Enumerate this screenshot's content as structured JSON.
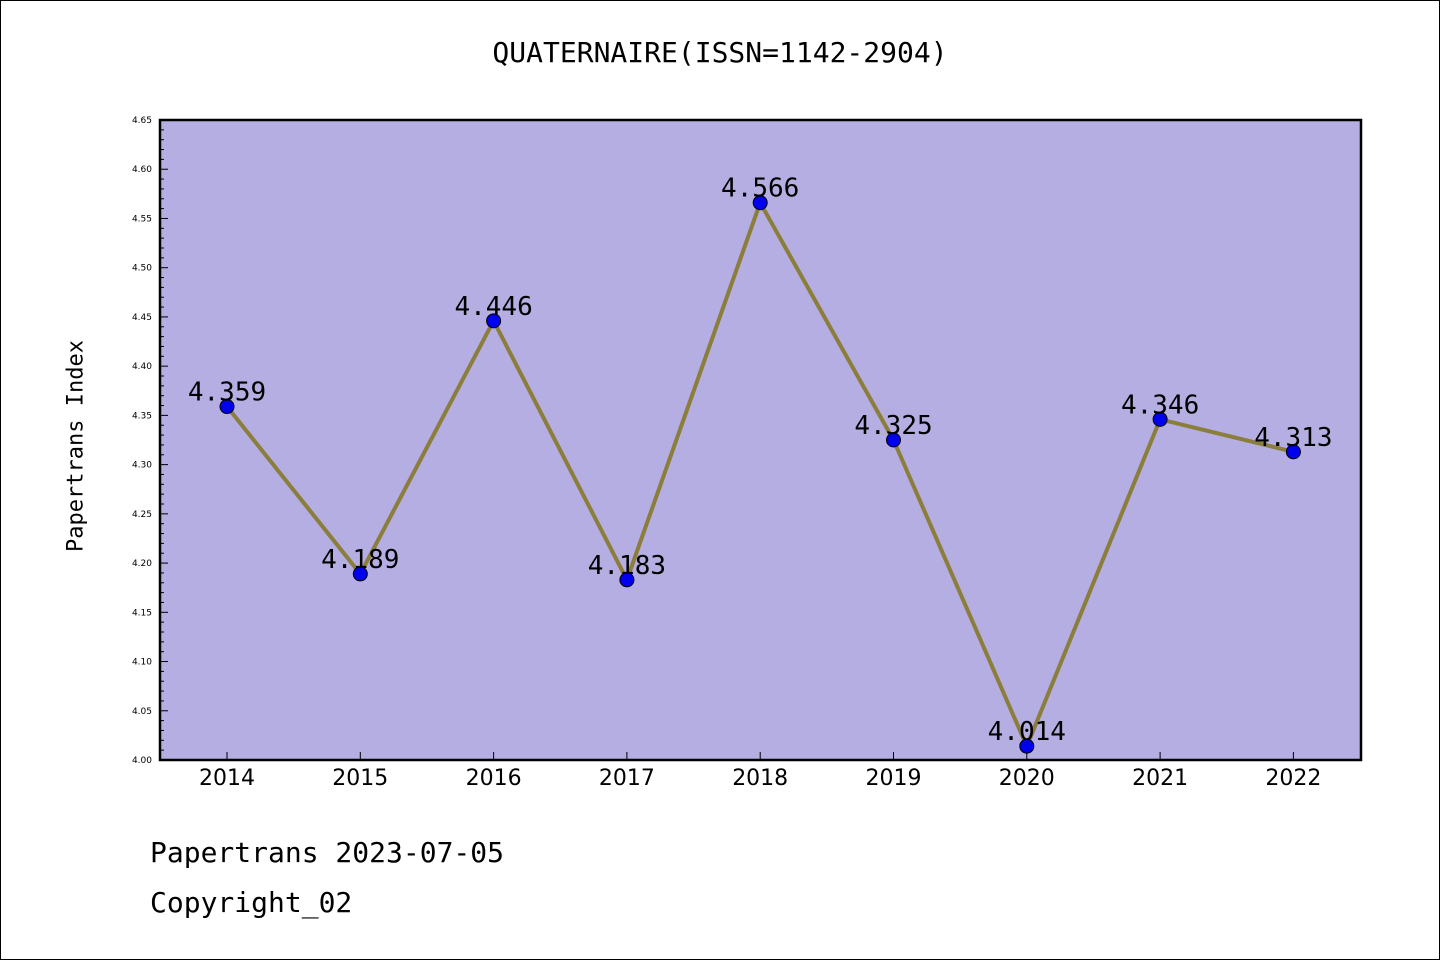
{
  "title": "QUATERNAIRE(ISSN=1142-2904)",
  "footer": {
    "line1": "Papertrans 2023-07-05",
    "line2": "Copyright_02"
  },
  "colors": {
    "plot_background": "#b4aee2",
    "line": "#8b7d3a",
    "marker": "#0000ee",
    "axis": "#000000"
  },
  "chart_data": {
    "type": "line",
    "title": "QUATERNAIRE(ISSN=1142-2904)",
    "xlabel": "",
    "ylabel": "Papertrans Index",
    "categories": [
      "2014",
      "2015",
      "2016",
      "2017",
      "2018",
      "2019",
      "2020",
      "2021",
      "2022"
    ],
    "values": [
      4.359,
      4.189,
      4.446,
      4.183,
      4.566,
      4.325,
      4.014,
      4.346,
      4.313
    ],
    "data_labels": [
      "4.359",
      "4.189",
      "4.446",
      "4.183",
      "4.566",
      "4.325",
      "4.014",
      "4.346",
      "4.313"
    ],
    "ylim": [
      4.0,
      4.65
    ],
    "yticks": [
      "4.00",
      "4.05",
      "4.10",
      "4.15",
      "4.20",
      "4.25",
      "4.30",
      "4.35",
      "4.40",
      "4.45",
      "4.50",
      "4.55",
      "4.60",
      "4.65"
    ],
    "grid": false,
    "legend": "none"
  }
}
